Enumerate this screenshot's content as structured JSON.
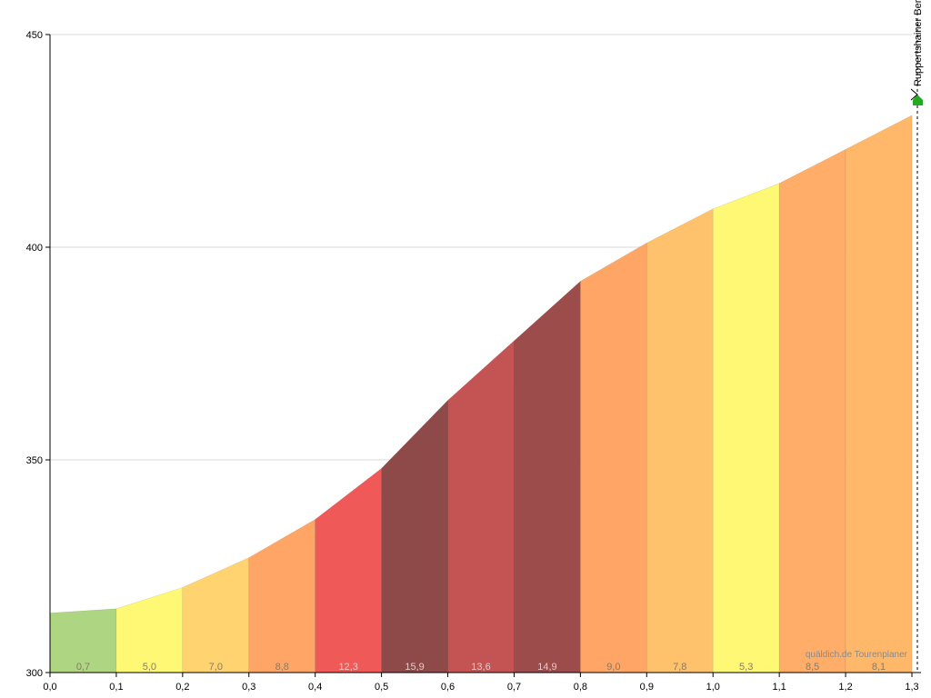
{
  "chart_data": {
    "type": "area",
    "x_ticks": [
      "0,0",
      "0,1",
      "0,2",
      "0,3",
      "0,4",
      "0,5",
      "0,6",
      "0,7",
      "0,8",
      "0,9",
      "1,0",
      "1,1",
      "1,2",
      "1,3"
    ],
    "y_ticks": [
      "300",
      "350",
      "400",
      "450"
    ],
    "xlim": [
      0,
      1.3
    ],
    "ylim": [
      300,
      450
    ],
    "elevation": {
      "x": [
        0,
        0.1,
        0.2,
        0.3,
        0.4,
        0.5,
        0.6,
        0.7,
        0.8,
        0.9,
        1.0,
        1.1,
        1.2,
        1.3
      ],
      "y": [
        314,
        315,
        320,
        327,
        336,
        348,
        364,
        378,
        392,
        401,
        409,
        415,
        423,
        431
      ]
    },
    "segments": [
      {
        "label": "0,7",
        "gradient": 0.7,
        "color": "#aed581"
      },
      {
        "label": "5,0",
        "gradient": 5.0,
        "color": "#fff875"
      },
      {
        "label": "7,0",
        "gradient": 7.0,
        "color": "#ffd370"
      },
      {
        "label": "8,8",
        "gradient": 8.8,
        "color": "#ffa566"
      },
      {
        "label": "12,3",
        "gradient": 12.3,
        "color": "#ef5a58"
      },
      {
        "label": "15,9",
        "gradient": 15.9,
        "color": "#8d4a49"
      },
      {
        "label": "13,6",
        "gradient": 13.6,
        "color": "#c45353"
      },
      {
        "label": "14,9",
        "gradient": 14.9,
        "color": "#9c4c4b"
      },
      {
        "label": "9,0",
        "gradient": 9.0,
        "color": "#ffa566"
      },
      {
        "label": "7,8",
        "gradient": 7.8,
        "color": "#ffc26c"
      },
      {
        "label": "5,3",
        "gradient": 5.3,
        "color": "#fff875"
      },
      {
        "label": "8,5",
        "gradient": 8.5,
        "color": "#ffad68"
      },
      {
        "label": "8,1",
        "gradient": 8.1,
        "color": "#ffb76a"
      }
    ],
    "summit": {
      "name": "Ruppertshainer Berg",
      "x": 1.3,
      "icon": "summit-flag-icon",
      "color": "#22aa22"
    },
    "grid": true
  },
  "watermark": "quäldich.de Tourenplaner"
}
